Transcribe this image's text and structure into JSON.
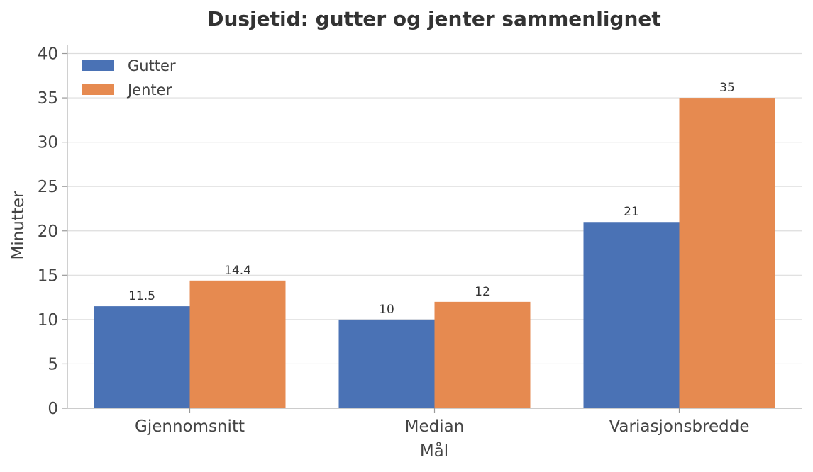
{
  "chart_data": {
    "type": "bar",
    "title": "Dusjetid: gutter og jenter sammenlignet",
    "xlabel": "Mål",
    "ylabel": "Minutter",
    "categories": [
      "Gjennomsnitt",
      "Median",
      "Variasjonsbredde"
    ],
    "series": [
      {
        "name": "Gutter",
        "values": [
          11.5,
          10,
          21
        ],
        "labels": [
          "11.5",
          "10",
          "21"
        ],
        "color": "#4a72b5"
      },
      {
        "name": "Jenter",
        "values": [
          14.4,
          12,
          35
        ],
        "labels": [
          "14.4",
          "12",
          "35"
        ],
        "color": "#e68a50"
      }
    ],
    "ylim": [
      0,
      41
    ],
    "yticks": [
      0,
      5,
      10,
      15,
      20,
      25,
      30,
      35,
      40
    ],
    "grid": "horizontal",
    "legend_position": "top-left"
  }
}
